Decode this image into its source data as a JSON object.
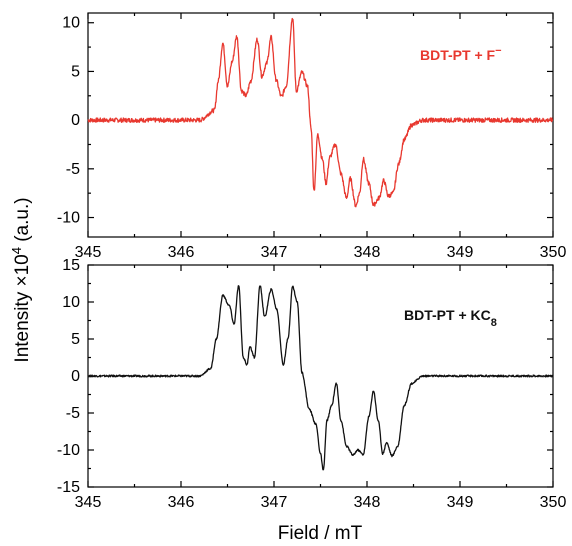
{
  "chart_data": [
    {
      "type": "line",
      "panel": "top",
      "series": [
        {
          "name": "BDT-PT + F⁻",
          "color": "#e8382f"
        }
      ],
      "legend_text": "BDT-PT + F",
      "legend_superscript": "−",
      "legend_placement": "top-right",
      "xlim": [
        345,
        350
      ],
      "ylim": [
        -12,
        11
      ],
      "x_ticks": [
        "345",
        "346",
        "347",
        "348",
        "349",
        "350"
      ],
      "y_ticks": [
        "10",
        "5",
        "0",
        "-5",
        "-10"
      ],
      "y_tick_values": [
        10,
        5,
        0,
        -5,
        -10
      ],
      "grid": false,
      "points": [
        [
          345.0,
          0
        ],
        [
          346.2,
          0
        ],
        [
          346.36,
          1.0
        ],
        [
          346.4,
          4.0
        ],
        [
          346.45,
          7.9
        ],
        [
          346.5,
          3.5
        ],
        [
          346.55,
          6.0
        ],
        [
          346.6,
          8.6
        ],
        [
          346.65,
          3.0
        ],
        [
          346.7,
          2.5
        ],
        [
          346.75,
          4.0
        ],
        [
          346.82,
          8.3
        ],
        [
          346.87,
          4.5
        ],
        [
          346.92,
          5.8
        ],
        [
          346.97,
          8.5
        ],
        [
          347.02,
          4.2
        ],
        [
          347.08,
          2.4
        ],
        [
          347.13,
          3.5
        ],
        [
          347.2,
          10.5
        ],
        [
          347.24,
          3.0
        ],
        [
          347.3,
          4.9
        ],
        [
          347.36,
          3.5
        ],
        [
          347.4,
          -1.0
        ],
        [
          347.43,
          -7.3
        ],
        [
          347.47,
          -1.5
        ],
        [
          347.52,
          -4.0
        ],
        [
          347.56,
          -6.5
        ],
        [
          347.6,
          -3.8
        ],
        [
          347.66,
          -2.5
        ],
        [
          347.72,
          -5.5
        ],
        [
          347.78,
          -8.0
        ],
        [
          347.82,
          -6.0
        ],
        [
          347.88,
          -8.8
        ],
        [
          347.92,
          -7.5
        ],
        [
          347.96,
          -4.0
        ],
        [
          348.02,
          -6.5
        ],
        [
          348.07,
          -8.7
        ],
        [
          348.13,
          -8.0
        ],
        [
          348.18,
          -6.2
        ],
        [
          348.23,
          -7.8
        ],
        [
          348.28,
          -7.5
        ],
        [
          348.34,
          -4.5
        ],
        [
          348.4,
          -2.0
        ],
        [
          348.48,
          -0.5
        ],
        [
          348.6,
          0
        ],
        [
          350.0,
          0
        ]
      ]
    },
    {
      "type": "line",
      "panel": "bottom",
      "series": [
        {
          "name": "BDT-PT + KC₈",
          "color": "#111111"
        }
      ],
      "legend_text": "BDT-PT + KC",
      "legend_subscript": "8",
      "legend_placement": "top-right",
      "xlim": [
        345,
        350
      ],
      "ylim": [
        -15,
        15
      ],
      "x_ticks": [
        "345",
        "346",
        "347",
        "348",
        "349",
        "350"
      ],
      "y_ticks": [
        "15",
        "10",
        "5",
        "0",
        "-5",
        "-10",
        "-15"
      ],
      "y_tick_values": [
        15,
        10,
        5,
        0,
        -5,
        -10,
        -15
      ],
      "grid": false,
      "points": [
        [
          345.0,
          0
        ],
        [
          346.2,
          0
        ],
        [
          346.32,
          1.0
        ],
        [
          346.38,
          5.0
        ],
        [
          346.45,
          10.9
        ],
        [
          346.52,
          9.5
        ],
        [
          346.57,
          7.0
        ],
        [
          346.62,
          12.2
        ],
        [
          346.67,
          2.5
        ],
        [
          346.71,
          1.5
        ],
        [
          346.74,
          4.0
        ],
        [
          346.79,
          2.5
        ],
        [
          346.85,
          12.2
        ],
        [
          346.9,
          8.0
        ],
        [
          346.97,
          11.7
        ],
        [
          347.03,
          9.0
        ],
        [
          347.1,
          1.5
        ],
        [
          347.15,
          5.0
        ],
        [
          347.2,
          12.1
        ],
        [
          347.25,
          10.0
        ],
        [
          347.3,
          0.5
        ],
        [
          347.38,
          -4.5
        ],
        [
          347.45,
          -6.5
        ],
        [
          347.5,
          -10.5
        ],
        [
          347.53,
          -12.8
        ],
        [
          347.57,
          -6.0
        ],
        [
          347.62,
          -4.0
        ],
        [
          347.67,
          -1.0
        ],
        [
          347.72,
          -6.0
        ],
        [
          347.78,
          -9.5
        ],
        [
          347.85,
          -10.7
        ],
        [
          347.9,
          -10.0
        ],
        [
          347.96,
          -10.6
        ],
        [
          348.02,
          -5.5
        ],
        [
          348.07,
          -2.0
        ],
        [
          348.12,
          -6.0
        ],
        [
          348.17,
          -10.5
        ],
        [
          348.21,
          -9.0
        ],
        [
          348.27,
          -10.8
        ],
        [
          348.33,
          -9.5
        ],
        [
          348.4,
          -4.0
        ],
        [
          348.48,
          -1.0
        ],
        [
          348.6,
          0
        ],
        [
          350.0,
          0
        ]
      ]
    }
  ],
  "labels": {
    "xlabel": "Field / mT",
    "ylabel_prefix": "Intensity ×10",
    "ylabel_exponent": "4",
    "ylabel_suffix": " (a.u.)"
  }
}
